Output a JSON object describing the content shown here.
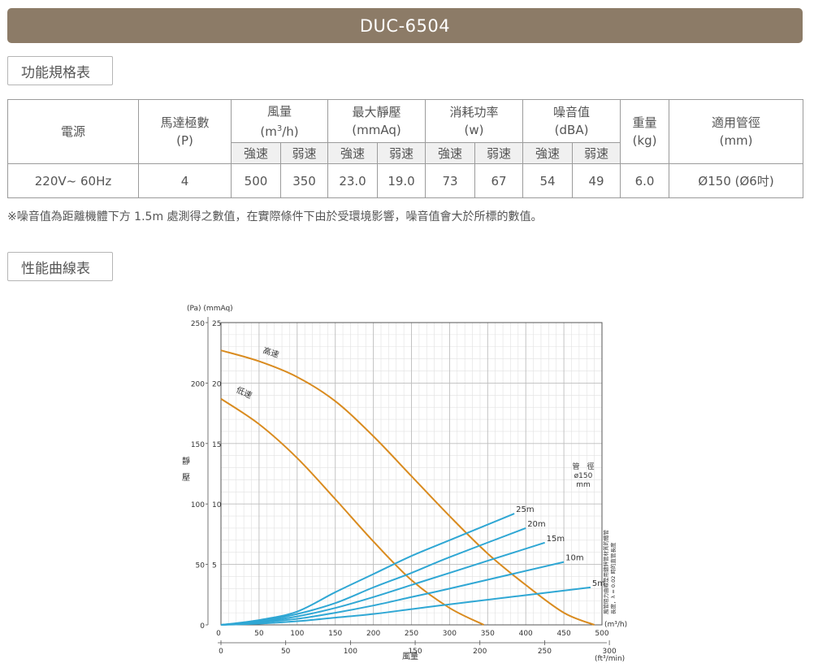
{
  "title": "DUC-6504",
  "sections": {
    "spec": "功能規格表",
    "curve": "性能曲線表"
  },
  "table": {
    "headers": {
      "power": "電源",
      "poles_l1": "馬達極數",
      "poles_l2": "(P)",
      "airflow_l1": "風量",
      "airflow_l2_a": "(m",
      "airflow_l2_sup": "3",
      "airflow_l2_b": "/h)",
      "static_l1": "最大靜壓",
      "static_l2": "(mmAq)",
      "consumption_l1": "消耗功率",
      "consumption_l2": "(w)",
      "noise_l1": "噪音值",
      "noise_l2": "(dBA)",
      "weight_l1": "重量",
      "weight_l2": "(kg)",
      "duct_l1": "適用管徑",
      "duct_l2": "(mm)",
      "strong": "強速",
      "weak": "弱速"
    },
    "row": {
      "power": "220V~ 60Hz",
      "poles": "4",
      "airflow_strong": "500",
      "airflow_weak": "350",
      "static_strong": "23.0",
      "static_weak": "19.0",
      "consumption_strong": "73",
      "consumption_weak": "67",
      "noise_strong": "54",
      "noise_weak": "49",
      "weight": "6.0",
      "duct": "Ø150 (Ø6吋)"
    }
  },
  "note": "※噪音值為距離機體下方 1.5m 處測得之數值，在實際條件下由於受環境影響，噪音值會大於所標的數值。",
  "chart_data": {
    "type": "line",
    "ylabel_units": "(Pa)  (mmAq)",
    "ylabel": "靜壓",
    "xlabel": "風量",
    "x_unit_main": "(m³/h)",
    "x_unit_secondary": "(ft³/min)",
    "xlim": [
      0,
      500
    ],
    "ylim": [
      0,
      25
    ],
    "x_ticks": [
      "50",
      "100",
      "150",
      "200",
      "250",
      "300",
      "350",
      "400",
      "450",
      "500"
    ],
    "x2_ticks": [
      "0",
      "50",
      "100",
      "150",
      "200",
      "250",
      "300"
    ],
    "y_ticks_mmAq": [
      "25",
      "20",
      "15",
      "10",
      "5"
    ],
    "y_ticks_pa": [
      "250",
      "200",
      "150",
      "100",
      "50",
      "0"
    ],
    "x_origin_label": "0",
    "duct_label": [
      "管　徑",
      "ø150",
      "mm"
    ],
    "side_note": [
      "風管阻力曲線是用鍍鋅管材質的鐵管",
      "長度，λ = 0.02 時的直管長度"
    ],
    "series": [
      {
        "name": "高速",
        "color": "#d98b1f",
        "kind": "fan",
        "x": [
          0,
          50,
          100,
          150,
          200,
          250,
          300,
          350,
          400,
          450,
          490
        ],
        "y": [
          22.7,
          21.8,
          20.5,
          18.5,
          15.6,
          12.3,
          9.0,
          5.9,
          3.3,
          1.0,
          0
        ]
      },
      {
        "name": "低速",
        "color": "#d98b1f",
        "kind": "fan",
        "x": [
          0,
          50,
          100,
          150,
          200,
          250,
          300,
          345
        ],
        "y": [
          18.7,
          16.6,
          13.8,
          10.4,
          6.9,
          3.7,
          1.4,
          0
        ]
      },
      {
        "name": "25m",
        "color": "#2fa7d4",
        "kind": "duct",
        "x": [
          0,
          50,
          100,
          150,
          200,
          250,
          300,
          385
        ],
        "y": [
          0,
          0.4,
          1.1,
          2.7,
          4.2,
          5.7,
          7.0,
          9.2
        ]
      },
      {
        "name": "20m",
        "color": "#2fa7d4",
        "kind": "duct",
        "x": [
          0,
          50,
          100,
          150,
          200,
          250,
          300,
          400
        ],
        "y": [
          0,
          0.3,
          0.9,
          1.8,
          3.1,
          4.3,
          5.6,
          8.0
        ]
      },
      {
        "name": "15m",
        "color": "#2fa7d4",
        "kind": "duct",
        "x": [
          0,
          50,
          100,
          150,
          200,
          250,
          300,
          425
        ],
        "y": [
          0,
          0.25,
          0.7,
          1.4,
          2.3,
          3.3,
          4.3,
          6.8
        ]
      },
      {
        "name": "10m",
        "color": "#2fa7d4",
        "kind": "duct",
        "x": [
          0,
          50,
          100,
          150,
          200,
          250,
          300,
          450
        ],
        "y": [
          0,
          0.2,
          0.5,
          1.0,
          1.6,
          2.3,
          3.0,
          5.2
        ]
      },
      {
        "name": "5m",
        "color": "#2fa7d4",
        "kind": "duct",
        "x": [
          0,
          50,
          100,
          150,
          200,
          250,
          300,
          485
        ],
        "y": [
          0,
          0.1,
          0.3,
          0.6,
          0.9,
          1.3,
          1.7,
          3.1
        ]
      }
    ]
  }
}
